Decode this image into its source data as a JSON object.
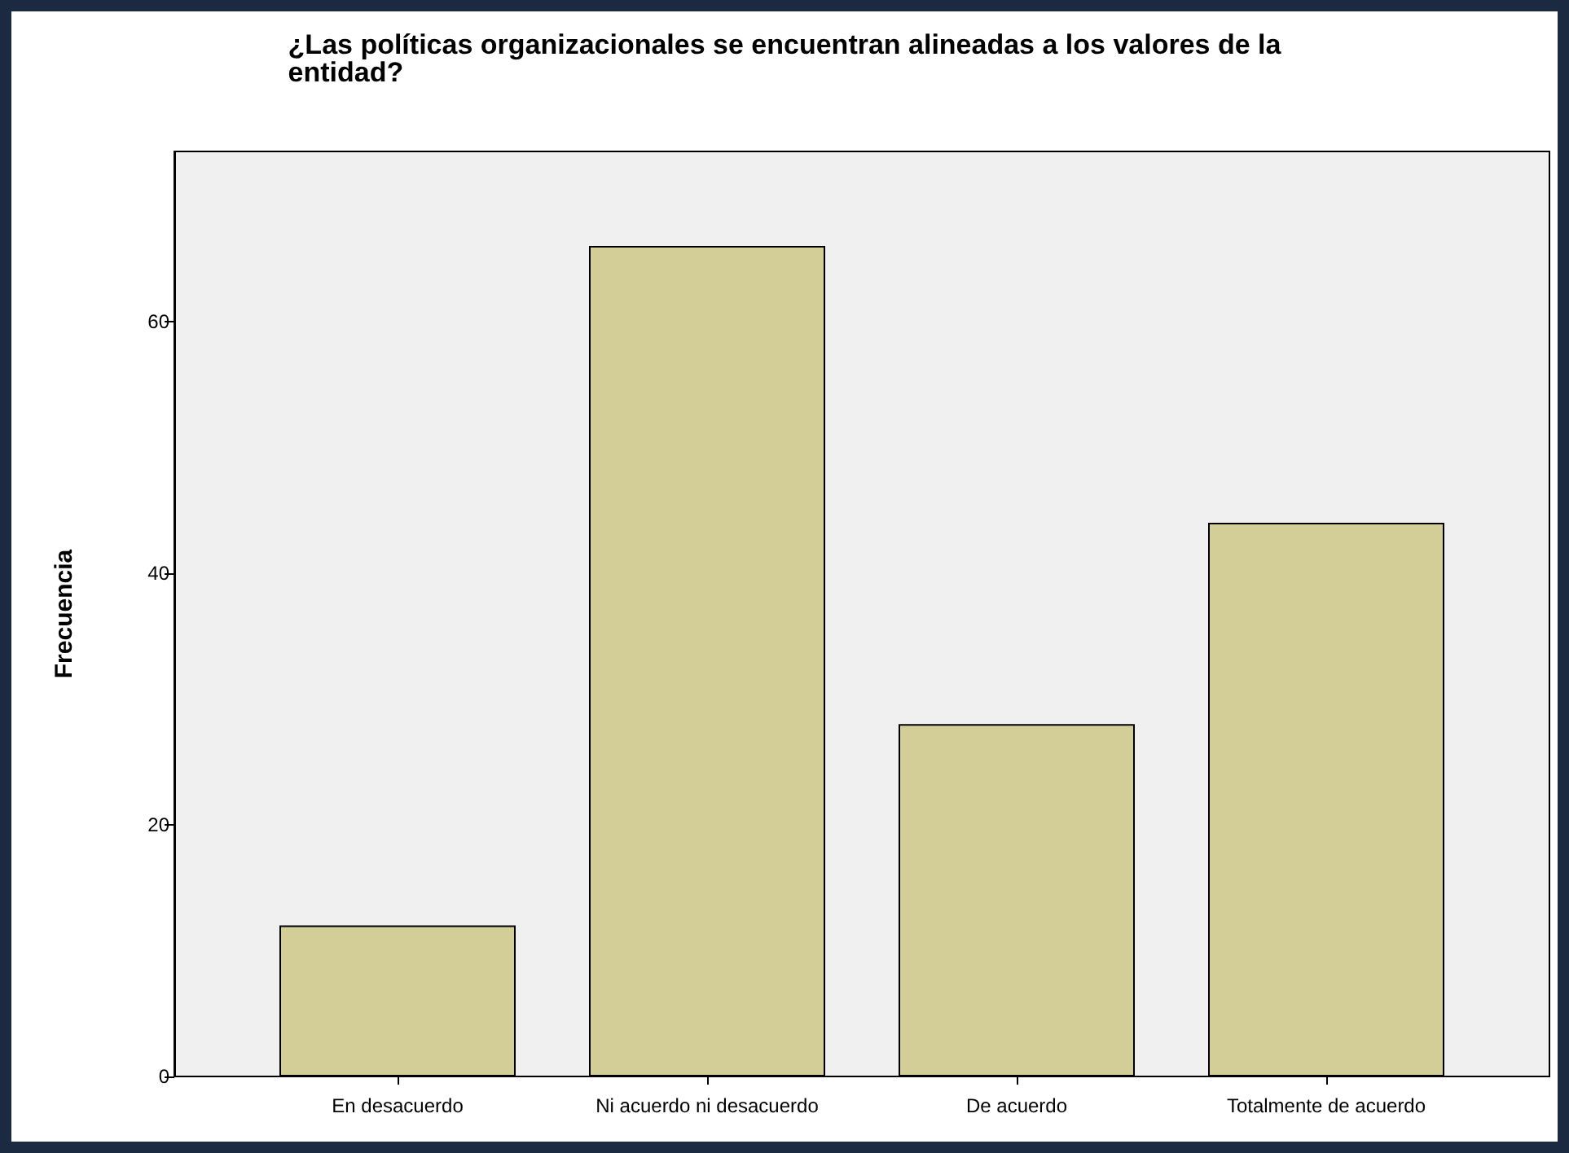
{
  "chart_data": {
    "type": "bar",
    "title": "¿Las políticas organizacionales se encuentran alineadas a los valores de la entidad?",
    "ylabel": "Frecuencia",
    "categories": [
      "En desacuerdo",
      "Ni acuerdo ni desacuerdo",
      "De acuerdo",
      "Totalmente de acuerdo"
    ],
    "values": [
      12,
      66,
      28,
      44
    ],
    "color": "#d3ce97",
    "ylim": [
      0,
      73.5
    ],
    "yticks": [
      0,
      20,
      40,
      60
    ],
    "grid": false
  }
}
